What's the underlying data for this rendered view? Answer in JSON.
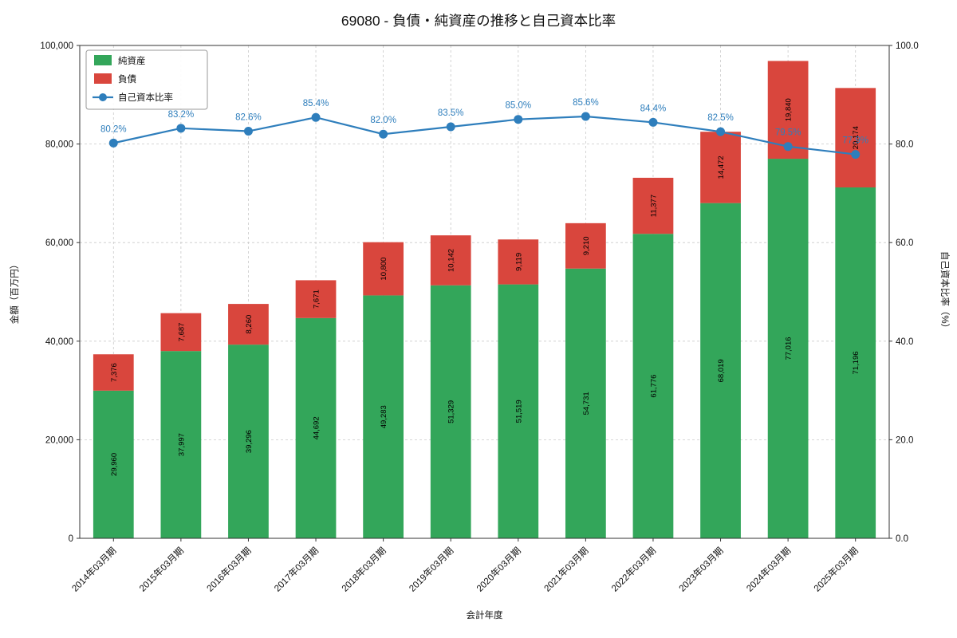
{
  "title": "69080 - 負債・純資産の推移と自己資本比率",
  "chart_data": {
    "type": "bar",
    "stacked": true,
    "xlabel": "会計年度",
    "ylabel_left": "金額（百万円）",
    "ylabel_right": "自己資本比率（%）",
    "ylim_left": [
      0,
      100000
    ],
    "ylim_right": [
      0,
      100
    ],
    "yticks_left": [
      {
        "value": 0,
        "label": "0"
      },
      {
        "value": 20000,
        "label": "20,000"
      },
      {
        "value": 40000,
        "label": "40,000"
      },
      {
        "value": 60000,
        "label": "60,000"
      },
      {
        "value": 80000,
        "label": "80,000"
      },
      {
        "value": 100000,
        "label": "100,000"
      }
    ],
    "yticks_right": [
      {
        "value": 0,
        "label": "0.0"
      },
      {
        "value": 20,
        "label": "20.0"
      },
      {
        "value": 40,
        "label": "40.0"
      },
      {
        "value": 60,
        "label": "60.0"
      },
      {
        "value": 80,
        "label": "80.0"
      },
      {
        "value": 100,
        "label": "100.0"
      }
    ],
    "categories": [
      "2014年03月期",
      "2015年03月期",
      "2016年03月期",
      "2017年03月期",
      "2018年03月期",
      "2019年03月期",
      "2020年03月期",
      "2021年03月期",
      "2022年03月期",
      "2023年03月期",
      "2024年03月期",
      "2025年03月期"
    ],
    "series": [
      {
        "name": "純資産",
        "color": "#33a65a",
        "values": [
          29960,
          37997,
          39296,
          44692,
          49283,
          51329,
          51519,
          54731,
          61776,
          68019,
          77016,
          71196
        ]
      },
      {
        "name": "負債",
        "color": "#d9463d",
        "values": [
          7376,
          7687,
          8260,
          7671,
          10800,
          10142,
          9119,
          9210,
          11377,
          14472,
          19840,
          20174
        ]
      }
    ],
    "line_series": {
      "name": "自己資本比率",
      "color": "#2e7ebc",
      "values": [
        80.2,
        83.2,
        82.6,
        85.4,
        82.0,
        83.5,
        85.0,
        85.6,
        84.4,
        82.5,
        79.5,
        77.9
      ]
    },
    "grid": true,
    "grid_color": "#c9c9c9",
    "spine_color": "#333333",
    "legend_position": "upper left"
  }
}
